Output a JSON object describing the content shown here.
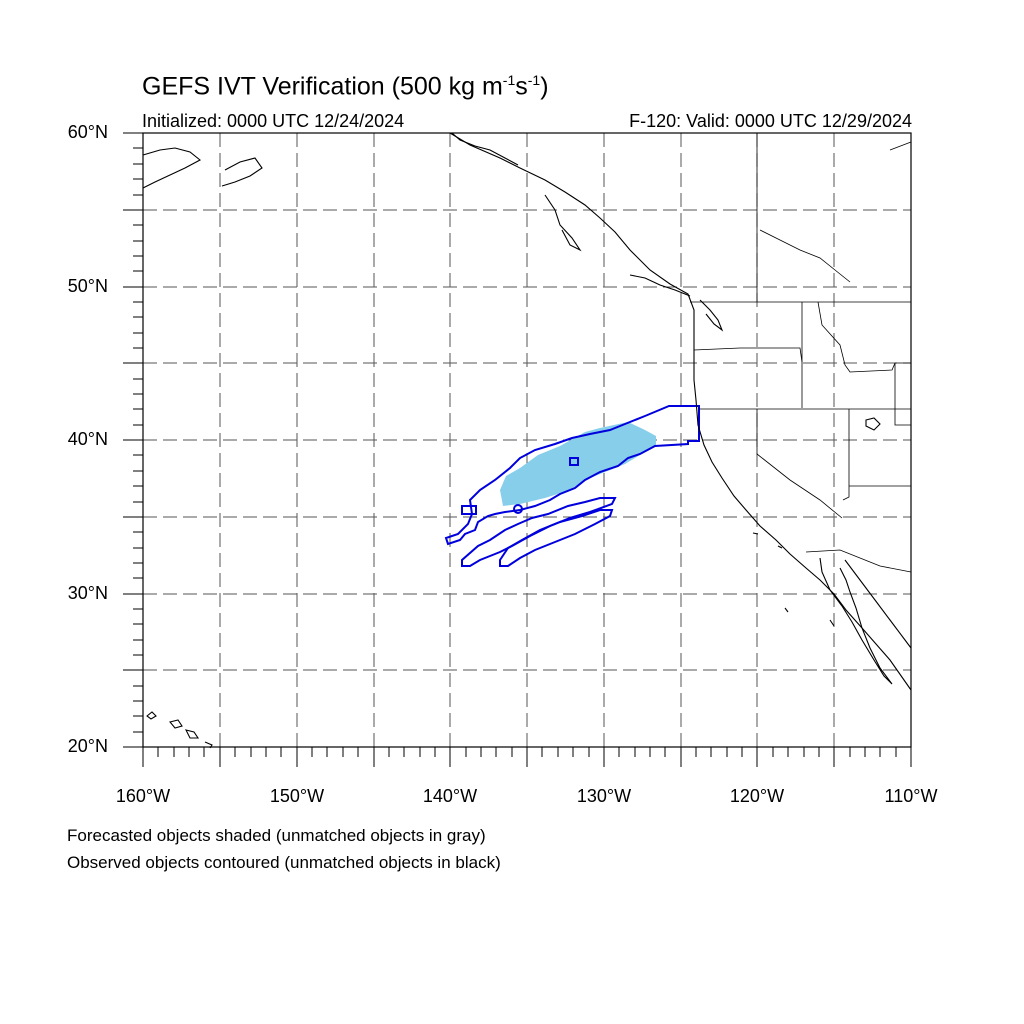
{
  "header": {
    "title_text": "GEFS IVT Verification (500 kg m",
    "title_sup1": "-1",
    "title_mid": "s",
    "title_sup2": "-1",
    "title_end": ")",
    "initialized": "Initialized: 0000 UTC 12/24/2024",
    "valid": "F-120: Valid: 0000 UTC 12/29/2024"
  },
  "axes": {
    "lat_labels": [
      "60°N",
      "50°N",
      "40°N",
      "30°N",
      "20°N"
    ],
    "lon_labels": [
      "160°W",
      "150°W",
      "140°W",
      "130°W",
      "120°W",
      "110°W"
    ],
    "lat_range": [
      20,
      60
    ],
    "lon_range": [
      -160,
      -110
    ],
    "grid": "dashed every 5°"
  },
  "legend": {
    "line1": "Forecasted objects shaded (unmatched objects in gray)",
    "line2": "Observed objects contoured (unmatched objects in black)"
  },
  "colors": {
    "forecast_fill": "#87ceeb",
    "observed_contour": "#0000dd",
    "coast": "#000000",
    "grid": "#555555"
  }
}
